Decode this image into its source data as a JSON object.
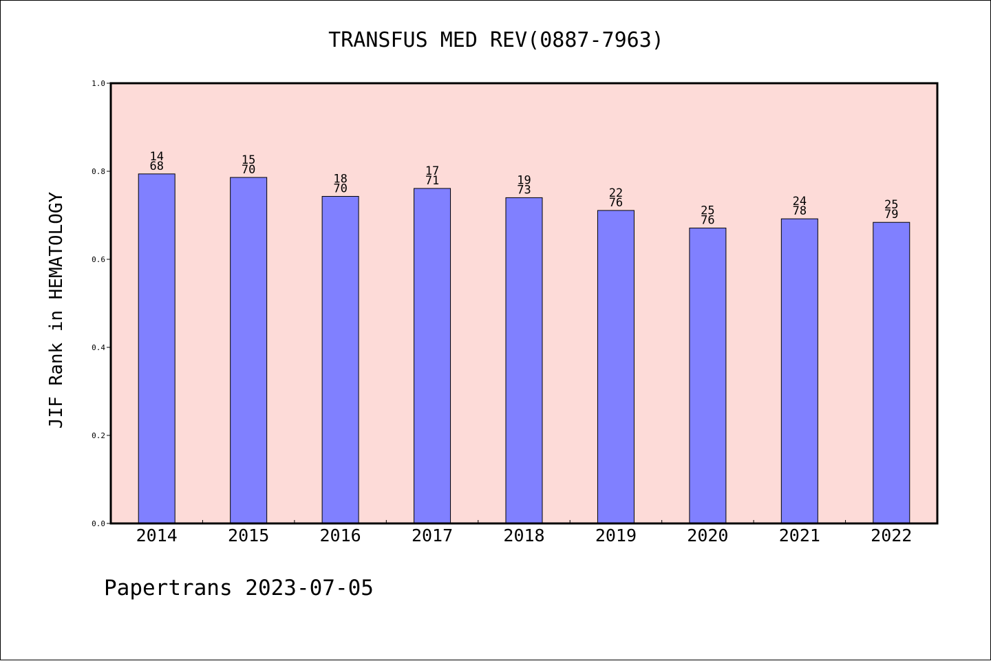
{
  "chart_data": {
    "type": "bar",
    "title": "TRANSFUS MED REV(0887-7963)",
    "xlabel": "",
    "ylabel": "JIF Rank in HEMATOLOGY",
    "ylim": [
      0,
      1.0
    ],
    "yticks": [
      "0.0",
      "0.2",
      "0.4",
      "0.6",
      "0.8",
      "1.0"
    ],
    "grid": false,
    "categories": [
      "2014",
      "2015",
      "2016",
      "2017",
      "2018",
      "2019",
      "2020",
      "2021",
      "2022"
    ],
    "values": [
      0.794,
      0.786,
      0.743,
      0.761,
      0.74,
      0.711,
      0.671,
      0.692,
      0.684
    ],
    "rank": [
      "14",
      "15",
      "18",
      "17",
      "19",
      "22",
      "25",
      "24",
      "25"
    ],
    "total": [
      "68",
      "70",
      "70",
      "71",
      "73",
      "76",
      "76",
      "78",
      "79"
    ],
    "colors": {
      "bar": "#8080ff",
      "plot_bg": "#fddbd8",
      "axis": "#000000"
    }
  },
  "footer": "Papertrans 2023-07-05"
}
